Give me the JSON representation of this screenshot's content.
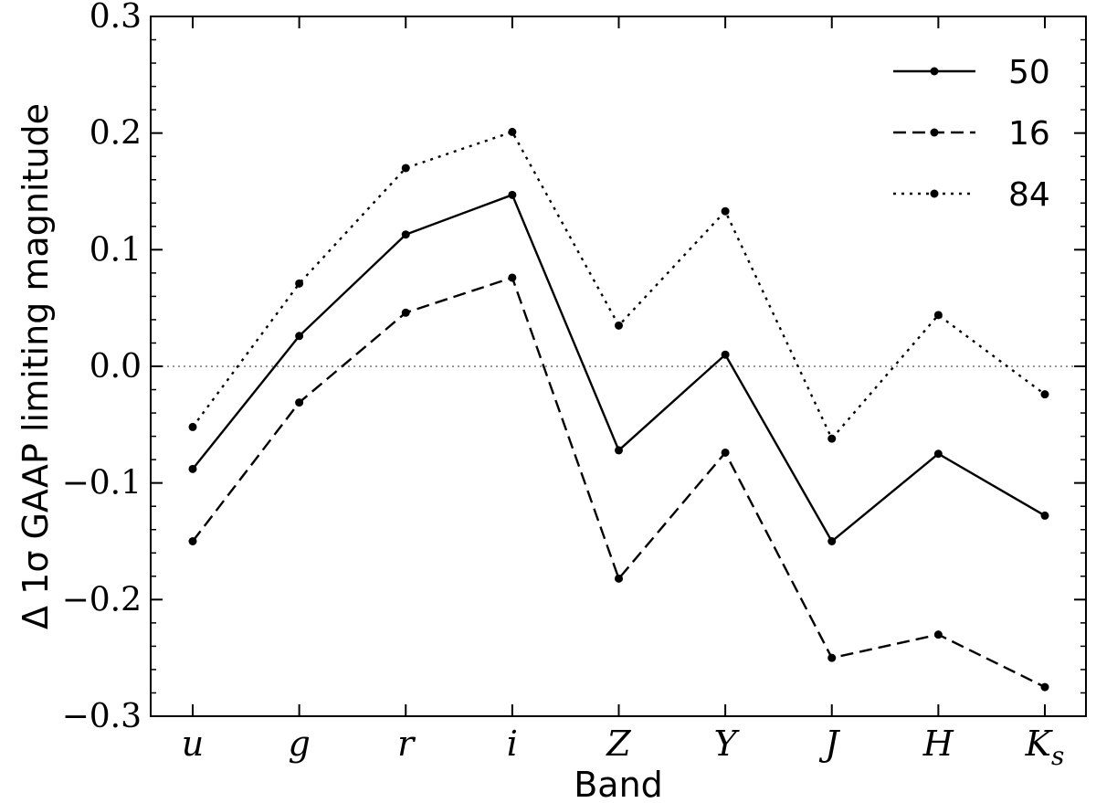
{
  "chart_data": {
    "type": "line",
    "xlabel": "Band",
    "ylabel": "Δ 1σ GAAP limiting magnitude",
    "categories": [
      "u",
      "g",
      "r",
      "i",
      "Z",
      "Y",
      "J",
      "H",
      "K_s"
    ],
    "ylim": [
      -0.3,
      0.3
    ],
    "yticks": [
      -0.3,
      -0.2,
      -0.1,
      0.0,
      0.1,
      0.2,
      0.3
    ],
    "ytick_labels": [
      "−0.3",
      "−0.2",
      "−0.1",
      "0.0",
      "0.1",
      "0.2",
      "0.3"
    ],
    "reference_line": {
      "y": 0.0,
      "style": "dotted",
      "color": "#999999"
    },
    "grid": false,
    "legend_position": "top-right",
    "series": [
      {
        "name": "50",
        "style": "solid",
        "values": [
          -0.088,
          0.026,
          0.113,
          0.147,
          -0.072,
          0.01,
          -0.15,
          -0.075,
          -0.128
        ]
      },
      {
        "name": "16",
        "style": "dashed",
        "values": [
          -0.15,
          -0.031,
          0.046,
          0.076,
          -0.182,
          -0.074,
          -0.25,
          -0.23,
          -0.275
        ]
      },
      {
        "name": "84",
        "style": "dotted",
        "values": [
          -0.052,
          0.071,
          0.17,
          0.201,
          0.035,
          0.133,
          -0.062,
          0.044,
          -0.024
        ]
      }
    ]
  }
}
